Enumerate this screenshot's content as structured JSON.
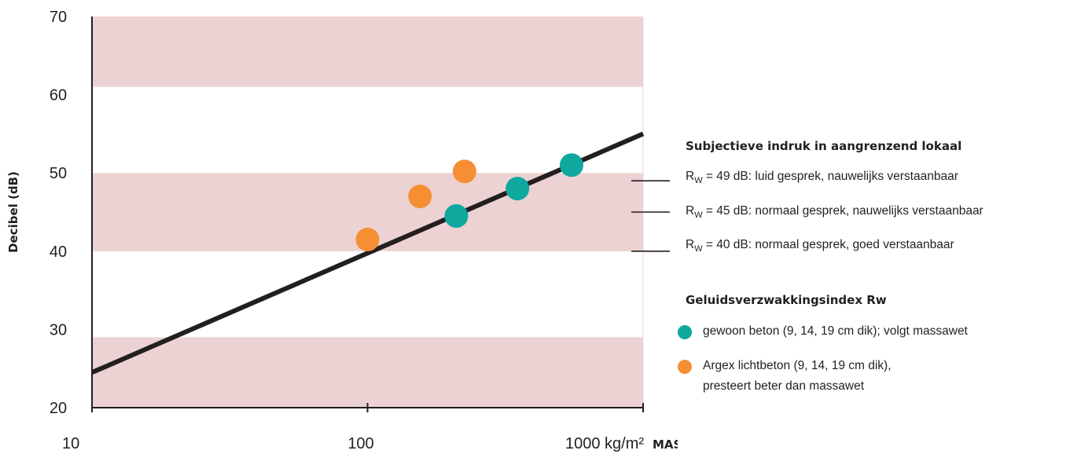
{
  "chart_data": {
    "type": "scatter",
    "x_scale": "log",
    "xlim": [
      10,
      1000
    ],
    "ylim": [
      20,
      70
    ],
    "ylabel": "Decibel (dB)",
    "x_tick_labels": [
      "10",
      "100",
      "1000 kg/m²"
    ],
    "x_title": "MASSA (enkelvoudige volle wand)",
    "y_ticks": [
      20,
      30,
      40,
      50,
      60,
      70
    ],
    "bands": [
      {
        "from": 20,
        "to": 29,
        "color": "#ecd2d2"
      },
      {
        "from": 40,
        "to": 50,
        "color": "#ecd2d2"
      },
      {
        "from": 61,
        "to": 70,
        "color": "#ecd2d2"
      }
    ],
    "reference_line": {
      "points": [
        [
          10,
          24.5
        ],
        [
          1000,
          55
        ]
      ],
      "color": "#231f20"
    },
    "series": [
      {
        "name": "gewoon beton (9, 14, 19 cm dik); volgt massawet",
        "color": "#0fa89e",
        "points": [
          [
            210,
            44.5
          ],
          [
            350,
            48
          ],
          [
            550,
            51
          ]
        ]
      },
      {
        "name": "Argex lichtbeton (9, 14, 19 cm dik), presteert beter dan massawet",
        "color": "#f68f33",
        "points": [
          [
            100,
            41.5
          ],
          [
            155,
            47
          ],
          [
            225,
            50.2
          ]
        ]
      }
    ],
    "ref_levels": [
      49,
      45,
      40
    ]
  },
  "side": {
    "heading_impressions": "Subjectieve indruk in aangrenzend lokaal",
    "impressions": [
      {
        "prefix": "R",
        "sub": "W",
        "text": " = 49 dB: luid gesprek, nauwelijks verstaanbaar"
      },
      {
        "prefix": "R",
        "sub": "W",
        "text": " = 45 dB: normaal gesprek, nauwelijks verstaanbaar"
      },
      {
        "prefix": "R",
        "sub": "W",
        "text": " = 40 dB: normaal gesprek, goed verstaanbaar"
      }
    ],
    "heading_legend": "Geluidsverzwakkingsindex Rw",
    "legend": [
      {
        "line1": "gewoon beton (9, 14, 19 cm dik); volgt massawet",
        "line2": ""
      },
      {
        "line1": "Argex lichtbeton (9, 14, 19 cm dik),",
        "line2": "presteert beter dan massawet"
      }
    ]
  }
}
